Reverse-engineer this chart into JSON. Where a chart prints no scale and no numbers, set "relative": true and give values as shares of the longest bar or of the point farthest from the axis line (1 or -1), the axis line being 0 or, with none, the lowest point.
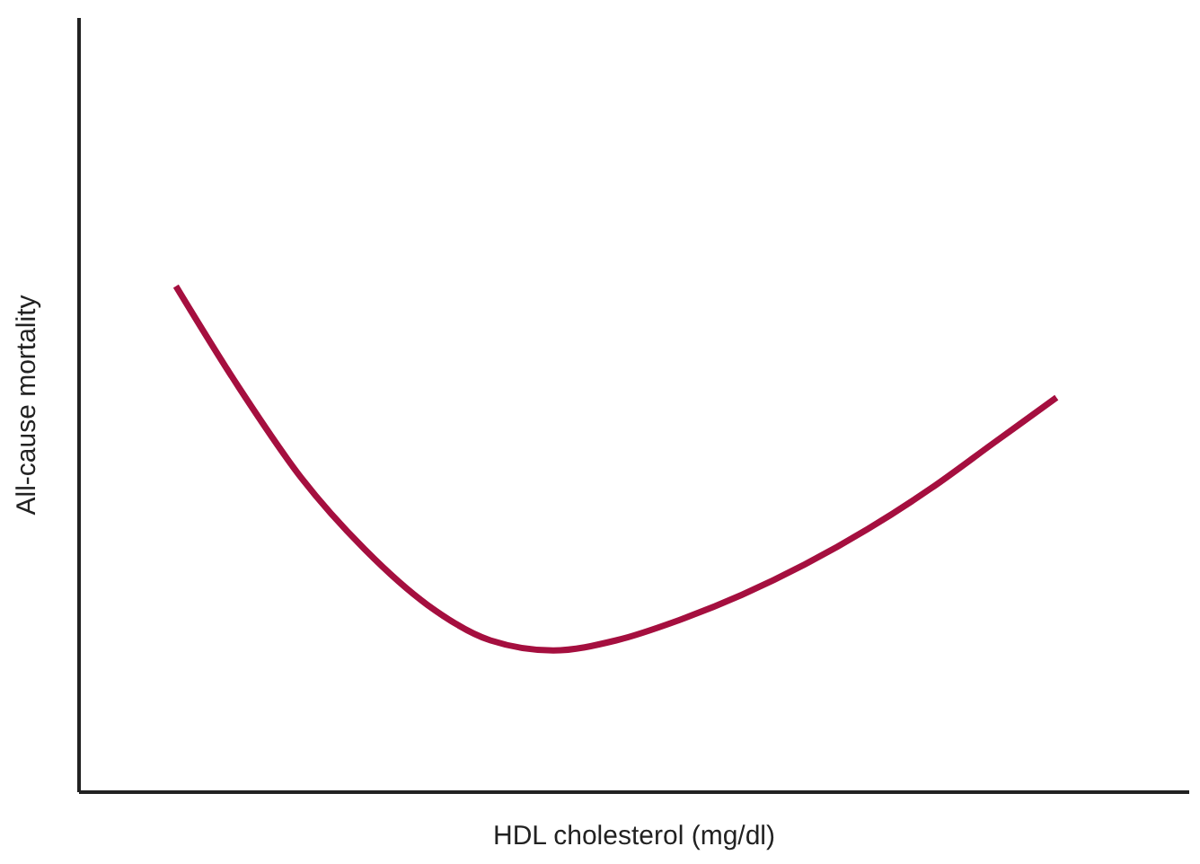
{
  "chart_data": {
    "type": "line",
    "xlabel": "HDL cholesterol (mg/dl)",
    "ylabel": "All-cause mortality",
    "relative": true,
    "color": "#a50f3f",
    "categories": [
      null,
      null,
      null,
      null,
      null,
      null,
      null,
      null,
      null,
      null,
      null,
      null,
      null,
      null,
      null
    ],
    "values": [
      1,
      0.8,
      0.62,
      0.48,
      0.37,
      0.3,
      0.28,
      0.3,
      0.34,
      0.39,
      0.45,
      0.52,
      0.6,
      0.69,
      0.78
    ]
  }
}
